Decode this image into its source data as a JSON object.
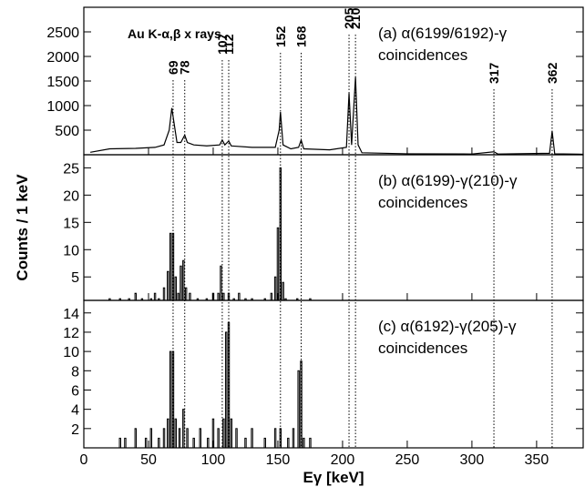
{
  "y_label": "Counts / 1 keV",
  "x_label": "Eγ [keV]",
  "chart_data": [
    {
      "type": "line",
      "title": "(a) α(6199/6192)-γ",
      "subtitle": "coincidences",
      "annotation": "Au K-α,β x rays",
      "peak_energies": [
        69,
        78,
        107,
        112,
        152,
        168,
        205,
        210,
        317,
        362
      ],
      "xlim": [
        0,
        386
      ],
      "ylim": [
        0,
        3000
      ],
      "yticks": [
        500,
        1000,
        1500,
        2000,
        2500
      ],
      "color": "#000000",
      "x": [
        5,
        20,
        40,
        55,
        62,
        66,
        68,
        70,
        72,
        75,
        78,
        80,
        85,
        95,
        105,
        107,
        109,
        112,
        114,
        130,
        148,
        151,
        152,
        154,
        160,
        166,
        168,
        170,
        190,
        203,
        205,
        207,
        210,
        212,
        215,
        250,
        300,
        317,
        320,
        360,
        362,
        364,
        386
      ],
      "values": [
        50,
        120,
        130,
        150,
        200,
        500,
        950,
        600,
        250,
        250,
        400,
        250,
        200,
        180,
        200,
        300,
        200,
        280,
        180,
        150,
        150,
        500,
        870,
        200,
        120,
        150,
        300,
        120,
        100,
        150,
        1250,
        200,
        1580,
        200,
        40,
        20,
        15,
        60,
        15,
        30,
        480,
        20,
        10
      ]
    },
    {
      "type": "bar",
      "title": "(b) α(6199)-γ(210)-γ",
      "subtitle": "coincidences",
      "xlim": [
        0,
        386
      ],
      "ylim": [
        0.7,
        27.4
      ],
      "yticks": [
        5,
        10,
        15,
        20,
        25
      ],
      "color": "#000000",
      "x": [
        20,
        28,
        35,
        40,
        45,
        52,
        55,
        58,
        62,
        65,
        67,
        69,
        71,
        73,
        75,
        77,
        79,
        82,
        88,
        95,
        100,
        104,
        106,
        108,
        112,
        116,
        120,
        125,
        130,
        140,
        145,
        148,
        150,
        152,
        154,
        156,
        165,
        175
      ],
      "values": [
        1,
        1,
        1,
        2,
        1,
        1,
        2,
        1,
        3,
        6,
        13,
        13,
        5,
        2,
        7,
        8,
        3,
        2,
        1,
        1,
        2,
        2,
        7,
        2,
        2,
        1,
        2,
        1,
        1,
        1,
        2,
        5,
        14,
        25,
        4,
        1,
        1,
        1
      ]
    },
    {
      "type": "bar",
      "title": "(c) α(6192)-γ(205)-γ",
      "subtitle": "coincidences",
      "xlim": [
        0,
        386
      ],
      "ylim": [
        0,
        15.3
      ],
      "yticks": [
        2,
        4,
        6,
        8,
        10,
        12,
        14
      ],
      "xticks": [
        0,
        50,
        100,
        150,
        200,
        250,
        300,
        350
      ],
      "color": "#000000",
      "x": [
        28,
        32,
        40,
        48,
        52,
        58,
        62,
        65,
        67,
        69,
        71,
        74,
        77,
        80,
        85,
        90,
        96,
        100,
        104,
        108,
        110,
        112,
        114,
        118,
        125,
        130,
        140,
        148,
        152,
        158,
        162,
        166,
        168,
        170,
        175
      ],
      "values": [
        1,
        1,
        2,
        1,
        2,
        1,
        2,
        3,
        10,
        10,
        3,
        2,
        4,
        2,
        1,
        2,
        1,
        3,
        2,
        3,
        12,
        13,
        3,
        2,
        1,
        2,
        1,
        2,
        2,
        1,
        2,
        8,
        9,
        1,
        1
      ]
    }
  ]
}
